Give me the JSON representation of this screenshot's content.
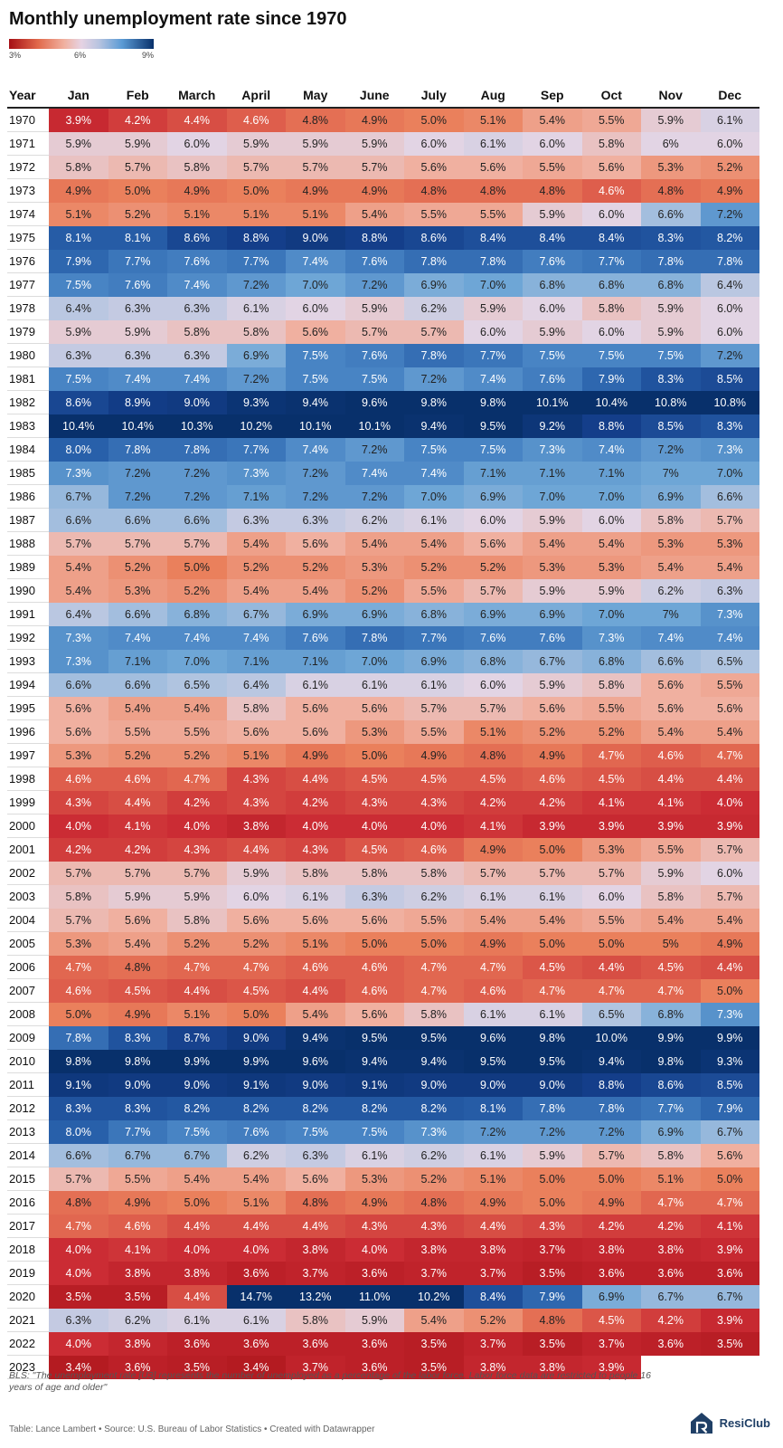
{
  "title": "Monthly unemployment rate since 1970",
  "legend": {
    "min_label": "3%",
    "mid_label": "6%",
    "max_label": "9%",
    "min": 3,
    "mid": 6,
    "max": 9
  },
  "colors": {
    "low": "#a50f15",
    "mid": "#e6d3e3",
    "high": "#08306b"
  },
  "header": {
    "year_label": "Year"
  },
  "footer": {
    "note": "BLS: \"The unemployment rate [U3] represents the number of unemployed as a percentage of the labor force. Labor force data are restricted to people 16 years of age and older\"",
    "credit": "Table: Lance Lambert • Source: U.S. Bureau of Labor Statistics • Created with Datawrapper",
    "brand": "ResiClub"
  },
  "chart_data": {
    "type": "heatmap",
    "title": "Monthly unemployment rate since 1970",
    "columns": [
      "Jan",
      "Feb",
      "March",
      "April",
      "May",
      "June",
      "July",
      "Aug",
      "Sep",
      "Oct",
      "Nov",
      "Dec"
    ],
    "color_scale": {
      "min": 3,
      "mid": 6,
      "max": 9
    },
    "rows": [
      {
        "year": "1970",
        "values": [
          "3.9%",
          "4.2%",
          "4.4%",
          "4.6%",
          "4.8%",
          "4.9%",
          "5.0%",
          "5.1%",
          "5.4%",
          "5.5%",
          "5.9%",
          "6.1%"
        ]
      },
      {
        "year": "1971",
        "values": [
          "5.9%",
          "5.9%",
          "6.0%",
          "5.9%",
          "5.9%",
          "5.9%",
          "6.0%",
          "6.1%",
          "6.0%",
          "5.8%",
          "6%",
          "6.0%"
        ]
      },
      {
        "year": "1972",
        "values": [
          "5.8%",
          "5.7%",
          "5.8%",
          "5.7%",
          "5.7%",
          "5.7%",
          "5.6%",
          "5.6%",
          "5.5%",
          "5.6%",
          "5.3%",
          "5.2%"
        ]
      },
      {
        "year": "1973",
        "values": [
          "4.9%",
          "5.0%",
          "4.9%",
          "5.0%",
          "4.9%",
          "4.9%",
          "4.8%",
          "4.8%",
          "4.8%",
          "4.6%",
          "4.8%",
          "4.9%"
        ]
      },
      {
        "year": "1974",
        "values": [
          "5.1%",
          "5.2%",
          "5.1%",
          "5.1%",
          "5.1%",
          "5.4%",
          "5.5%",
          "5.5%",
          "5.9%",
          "6.0%",
          "6.6%",
          "7.2%"
        ]
      },
      {
        "year": "1975",
        "values": [
          "8.1%",
          "8.1%",
          "8.6%",
          "8.8%",
          "9.0%",
          "8.8%",
          "8.6%",
          "8.4%",
          "8.4%",
          "8.4%",
          "8.3%",
          "8.2%"
        ]
      },
      {
        "year": "1976",
        "values": [
          "7.9%",
          "7.7%",
          "7.6%",
          "7.7%",
          "7.4%",
          "7.6%",
          "7.8%",
          "7.8%",
          "7.6%",
          "7.7%",
          "7.8%",
          "7.8%"
        ]
      },
      {
        "year": "1977",
        "values": [
          "7.5%",
          "7.6%",
          "7.4%",
          "7.2%",
          "7.0%",
          "7.2%",
          "6.9%",
          "7.0%",
          "6.8%",
          "6.8%",
          "6.8%",
          "6.4%"
        ]
      },
      {
        "year": "1978",
        "values": [
          "6.4%",
          "6.3%",
          "6.3%",
          "6.1%",
          "6.0%",
          "5.9%",
          "6.2%",
          "5.9%",
          "6.0%",
          "5.8%",
          "5.9%",
          "6.0%"
        ]
      },
      {
        "year": "1979",
        "values": [
          "5.9%",
          "5.9%",
          "5.8%",
          "5.8%",
          "5.6%",
          "5.7%",
          "5.7%",
          "6.0%",
          "5.9%",
          "6.0%",
          "5.9%",
          "6.0%"
        ]
      },
      {
        "year": "1980",
        "values": [
          "6.3%",
          "6.3%",
          "6.3%",
          "6.9%",
          "7.5%",
          "7.6%",
          "7.8%",
          "7.7%",
          "7.5%",
          "7.5%",
          "7.5%",
          "7.2%"
        ]
      },
      {
        "year": "1981",
        "values": [
          "7.5%",
          "7.4%",
          "7.4%",
          "7.2%",
          "7.5%",
          "7.5%",
          "7.2%",
          "7.4%",
          "7.6%",
          "7.9%",
          "8.3%",
          "8.5%"
        ]
      },
      {
        "year": "1982",
        "values": [
          "8.6%",
          "8.9%",
          "9.0%",
          "9.3%",
          "9.4%",
          "9.6%",
          "9.8%",
          "9.8%",
          "10.1%",
          "10.4%",
          "10.8%",
          "10.8%"
        ]
      },
      {
        "year": "1983",
        "values": [
          "10.4%",
          "10.4%",
          "10.3%",
          "10.2%",
          "10.1%",
          "10.1%",
          "9.4%",
          "9.5%",
          "9.2%",
          "8.8%",
          "8.5%",
          "8.3%"
        ]
      },
      {
        "year": "1984",
        "values": [
          "8.0%",
          "7.8%",
          "7.8%",
          "7.7%",
          "7.4%",
          "7.2%",
          "7.5%",
          "7.5%",
          "7.3%",
          "7.4%",
          "7.2%",
          "7.3%"
        ]
      },
      {
        "year": "1985",
        "values": [
          "7.3%",
          "7.2%",
          "7.2%",
          "7.3%",
          "7.2%",
          "7.4%",
          "7.4%",
          "7.1%",
          "7.1%",
          "7.1%",
          "7%",
          "7.0%"
        ]
      },
      {
        "year": "1986",
        "values": [
          "6.7%",
          "7.2%",
          "7.2%",
          "7.1%",
          "7.2%",
          "7.2%",
          "7.0%",
          "6.9%",
          "7.0%",
          "7.0%",
          "6.9%",
          "6.6%"
        ]
      },
      {
        "year": "1987",
        "values": [
          "6.6%",
          "6.6%",
          "6.6%",
          "6.3%",
          "6.3%",
          "6.2%",
          "6.1%",
          "6.0%",
          "5.9%",
          "6.0%",
          "5.8%",
          "5.7%"
        ]
      },
      {
        "year": "1988",
        "values": [
          "5.7%",
          "5.7%",
          "5.7%",
          "5.4%",
          "5.6%",
          "5.4%",
          "5.4%",
          "5.6%",
          "5.4%",
          "5.4%",
          "5.3%",
          "5.3%"
        ]
      },
      {
        "year": "1989",
        "values": [
          "5.4%",
          "5.2%",
          "5.0%",
          "5.2%",
          "5.2%",
          "5.3%",
          "5.2%",
          "5.2%",
          "5.3%",
          "5.3%",
          "5.4%",
          "5.4%"
        ]
      },
      {
        "year": "1990",
        "values": [
          "5.4%",
          "5.3%",
          "5.2%",
          "5.4%",
          "5.4%",
          "5.2%",
          "5.5%",
          "5.7%",
          "5.9%",
          "5.9%",
          "6.2%",
          "6.3%"
        ]
      },
      {
        "year": "1991",
        "values": [
          "6.4%",
          "6.6%",
          "6.8%",
          "6.7%",
          "6.9%",
          "6.9%",
          "6.8%",
          "6.9%",
          "6.9%",
          "7.0%",
          "7%",
          "7.3%"
        ]
      },
      {
        "year": "1992",
        "values": [
          "7.3%",
          "7.4%",
          "7.4%",
          "7.4%",
          "7.6%",
          "7.8%",
          "7.7%",
          "7.6%",
          "7.6%",
          "7.3%",
          "7.4%",
          "7.4%"
        ]
      },
      {
        "year": "1993",
        "values": [
          "7.3%",
          "7.1%",
          "7.0%",
          "7.1%",
          "7.1%",
          "7.0%",
          "6.9%",
          "6.8%",
          "6.7%",
          "6.8%",
          "6.6%",
          "6.5%"
        ]
      },
      {
        "year": "1994",
        "values": [
          "6.6%",
          "6.6%",
          "6.5%",
          "6.4%",
          "6.1%",
          "6.1%",
          "6.1%",
          "6.0%",
          "5.9%",
          "5.8%",
          "5.6%",
          "5.5%"
        ]
      },
      {
        "year": "1995",
        "values": [
          "5.6%",
          "5.4%",
          "5.4%",
          "5.8%",
          "5.6%",
          "5.6%",
          "5.7%",
          "5.7%",
          "5.6%",
          "5.5%",
          "5.6%",
          "5.6%"
        ]
      },
      {
        "year": "1996",
        "values": [
          "5.6%",
          "5.5%",
          "5.5%",
          "5.6%",
          "5.6%",
          "5.3%",
          "5.5%",
          "5.1%",
          "5.2%",
          "5.2%",
          "5.4%",
          "5.4%"
        ]
      },
      {
        "year": "1997",
        "values": [
          "5.3%",
          "5.2%",
          "5.2%",
          "5.1%",
          "4.9%",
          "5.0%",
          "4.9%",
          "4.8%",
          "4.9%",
          "4.7%",
          "4.6%",
          "4.7%"
        ]
      },
      {
        "year": "1998",
        "values": [
          "4.6%",
          "4.6%",
          "4.7%",
          "4.3%",
          "4.4%",
          "4.5%",
          "4.5%",
          "4.5%",
          "4.6%",
          "4.5%",
          "4.4%",
          "4.4%"
        ]
      },
      {
        "year": "1999",
        "values": [
          "4.3%",
          "4.4%",
          "4.2%",
          "4.3%",
          "4.2%",
          "4.3%",
          "4.3%",
          "4.2%",
          "4.2%",
          "4.1%",
          "4.1%",
          "4.0%"
        ]
      },
      {
        "year": "2000",
        "values": [
          "4.0%",
          "4.1%",
          "4.0%",
          "3.8%",
          "4.0%",
          "4.0%",
          "4.0%",
          "4.1%",
          "3.9%",
          "3.9%",
          "3.9%",
          "3.9%"
        ]
      },
      {
        "year": "2001",
        "values": [
          "4.2%",
          "4.2%",
          "4.3%",
          "4.4%",
          "4.3%",
          "4.5%",
          "4.6%",
          "4.9%",
          "5.0%",
          "5.3%",
          "5.5%",
          "5.7%"
        ]
      },
      {
        "year": "2002",
        "values": [
          "5.7%",
          "5.7%",
          "5.7%",
          "5.9%",
          "5.8%",
          "5.8%",
          "5.8%",
          "5.7%",
          "5.7%",
          "5.7%",
          "5.9%",
          "6.0%"
        ]
      },
      {
        "year": "2003",
        "values": [
          "5.8%",
          "5.9%",
          "5.9%",
          "6.0%",
          "6.1%",
          "6.3%",
          "6.2%",
          "6.1%",
          "6.1%",
          "6.0%",
          "5.8%",
          "5.7%"
        ]
      },
      {
        "year": "2004",
        "values": [
          "5.7%",
          "5.6%",
          "5.8%",
          "5.6%",
          "5.6%",
          "5.6%",
          "5.5%",
          "5.4%",
          "5.4%",
          "5.5%",
          "5.4%",
          "5.4%"
        ]
      },
      {
        "year": "2005",
        "values": [
          "5.3%",
          "5.4%",
          "5.2%",
          "5.2%",
          "5.1%",
          "5.0%",
          "5.0%",
          "4.9%",
          "5.0%",
          "5.0%",
          "5%",
          "4.9%"
        ]
      },
      {
        "year": "2006",
        "values": [
          "4.7%",
          "4.8%",
          "4.7%",
          "4.7%",
          "4.6%",
          "4.6%",
          "4.7%",
          "4.7%",
          "4.5%",
          "4.4%",
          "4.5%",
          "4.4%"
        ]
      },
      {
        "year": "2007",
        "values": [
          "4.6%",
          "4.5%",
          "4.4%",
          "4.5%",
          "4.4%",
          "4.6%",
          "4.7%",
          "4.6%",
          "4.7%",
          "4.7%",
          "4.7%",
          "5.0%"
        ]
      },
      {
        "year": "2008",
        "values": [
          "5.0%",
          "4.9%",
          "5.1%",
          "5.0%",
          "5.4%",
          "5.6%",
          "5.8%",
          "6.1%",
          "6.1%",
          "6.5%",
          "6.8%",
          "7.3%"
        ]
      },
      {
        "year": "2009",
        "values": [
          "7.8%",
          "8.3%",
          "8.7%",
          "9.0%",
          "9.4%",
          "9.5%",
          "9.5%",
          "9.6%",
          "9.8%",
          "10.0%",
          "9.9%",
          "9.9%"
        ]
      },
      {
        "year": "2010",
        "values": [
          "9.8%",
          "9.8%",
          "9.9%",
          "9.9%",
          "9.6%",
          "9.4%",
          "9.4%",
          "9.5%",
          "9.5%",
          "9.4%",
          "9.8%",
          "9.3%"
        ]
      },
      {
        "year": "2011",
        "values": [
          "9.1%",
          "9.0%",
          "9.0%",
          "9.1%",
          "9.0%",
          "9.1%",
          "9.0%",
          "9.0%",
          "9.0%",
          "8.8%",
          "8.6%",
          "8.5%"
        ]
      },
      {
        "year": "2012",
        "values": [
          "8.3%",
          "8.3%",
          "8.2%",
          "8.2%",
          "8.2%",
          "8.2%",
          "8.2%",
          "8.1%",
          "7.8%",
          "7.8%",
          "7.7%",
          "7.9%"
        ]
      },
      {
        "year": "2013",
        "values": [
          "8.0%",
          "7.7%",
          "7.5%",
          "7.6%",
          "7.5%",
          "7.5%",
          "7.3%",
          "7.2%",
          "7.2%",
          "7.2%",
          "6.9%",
          "6.7%"
        ]
      },
      {
        "year": "2014",
        "values": [
          "6.6%",
          "6.7%",
          "6.7%",
          "6.2%",
          "6.3%",
          "6.1%",
          "6.2%",
          "6.1%",
          "5.9%",
          "5.7%",
          "5.8%",
          "5.6%"
        ]
      },
      {
        "year": "2015",
        "values": [
          "5.7%",
          "5.5%",
          "5.4%",
          "5.4%",
          "5.6%",
          "5.3%",
          "5.2%",
          "5.1%",
          "5.0%",
          "5.0%",
          "5.1%",
          "5.0%"
        ]
      },
      {
        "year": "2016",
        "values": [
          "4.8%",
          "4.9%",
          "5.0%",
          "5.1%",
          "4.8%",
          "4.9%",
          "4.8%",
          "4.9%",
          "5.0%",
          "4.9%",
          "4.7%",
          "4.7%"
        ]
      },
      {
        "year": "2017",
        "values": [
          "4.7%",
          "4.6%",
          "4.4%",
          "4.4%",
          "4.4%",
          "4.3%",
          "4.3%",
          "4.4%",
          "4.3%",
          "4.2%",
          "4.2%",
          "4.1%"
        ]
      },
      {
        "year": "2018",
        "values": [
          "4.0%",
          "4.1%",
          "4.0%",
          "4.0%",
          "3.8%",
          "4.0%",
          "3.8%",
          "3.8%",
          "3.7%",
          "3.8%",
          "3.8%",
          "3.9%"
        ]
      },
      {
        "year": "2019",
        "values": [
          "4.0%",
          "3.8%",
          "3.8%",
          "3.6%",
          "3.7%",
          "3.6%",
          "3.7%",
          "3.7%",
          "3.5%",
          "3.6%",
          "3.6%",
          "3.6%"
        ]
      },
      {
        "year": "2020",
        "values": [
          "3.5%",
          "3.5%",
          "4.4%",
          "14.7%",
          "13.2%",
          "11.0%",
          "10.2%",
          "8.4%",
          "7.9%",
          "6.9%",
          "6.7%",
          "6.7%"
        ]
      },
      {
        "year": "2021",
        "values": [
          "6.3%",
          "6.2%",
          "6.1%",
          "6.1%",
          "5.8%",
          "5.9%",
          "5.4%",
          "5.2%",
          "4.8%",
          "4.5%",
          "4.2%",
          "3.9%"
        ]
      },
      {
        "year": "2022",
        "values": [
          "4.0%",
          "3.8%",
          "3.6%",
          "3.6%",
          "3.6%",
          "3.6%",
          "3.5%",
          "3.7%",
          "3.5%",
          "3.7%",
          "3.6%",
          "3.5%"
        ]
      },
      {
        "year": "2023",
        "values": [
          "3.4%",
          "3.6%",
          "3.5%",
          "3.4%",
          "3.7%",
          "3.6%",
          "3.5%",
          "3.8%",
          "3.8%",
          "3.9%",
          "",
          ""
        ]
      }
    ]
  }
}
